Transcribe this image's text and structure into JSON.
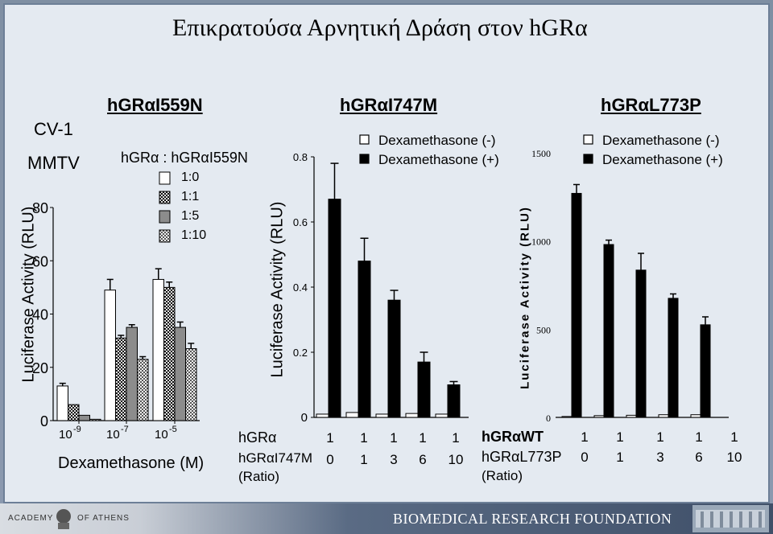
{
  "slide": {
    "title": "Επικρατούσα Αρνητική Δράση στον hGRα",
    "footer_left_1": "ACADEMY",
    "footer_left_2": "OF ATHENS",
    "footer_right": "BIOMEDICAL RESEARCH FOUNDATION",
    "colors": {
      "panel": "#e4eaf1",
      "frame": "#7f8fa3",
      "footer": "#3f4f68"
    }
  },
  "chart_data": [
    {
      "type": "bar",
      "title": "hGRαI559N",
      "cell_line": "CV-1",
      "reporter": "MMTV",
      "ylabel": "Luciferase Activity (RLU)",
      "xlabel": "Dexamethasone (M)",
      "ylim": [
        0,
        80
      ],
      "yticks": [
        0,
        20,
        40,
        60,
        80
      ],
      "categories": [
        "10-9",
        "10-7",
        "10-5"
      ],
      "legend_title": "hGRα : hGRαI559N",
      "series": [
        {
          "name": "1:0",
          "values": [
            13,
            49,
            53
          ],
          "errors": [
            1,
            4,
            4
          ]
        },
        {
          "name": "1:1",
          "values": [
            6,
            31,
            50
          ],
          "errors": [
            0,
            1,
            2
          ]
        },
        {
          "name": "1:5",
          "values": [
            2,
            35,
            35
          ],
          "errors": [
            0,
            1,
            2
          ]
        },
        {
          "name": "1:10",
          "values": [
            0.5,
            23,
            27
          ],
          "errors": [
            0,
            1,
            2
          ]
        }
      ]
    },
    {
      "type": "bar",
      "title": "hGRαI747M",
      "ylabel": "Luciferase Activity (RLU)",
      "ylim": [
        0,
        0.8
      ],
      "yticks": [
        0,
        0.2,
        0.4,
        0.6,
        0.8
      ],
      "ratio_label_1": "hGRα",
      "ratio_label_2": "hGRαI747M",
      "ratio_label_3": "(Ratio)",
      "ratio_row_1": [
        "1",
        "1",
        "1",
        "1",
        "1"
      ],
      "ratio_row_2": [
        "0",
        "1",
        "3",
        "6",
        "10"
      ],
      "series": [
        {
          "name": "Dexamethasone (-)",
          "values": [
            0.01,
            0.015,
            0.01,
            0.012,
            0.01
          ]
        },
        {
          "name": "Dexamethasone (+)",
          "values": [
            0.67,
            0.48,
            0.36,
            0.17,
            0.1
          ],
          "errors": [
            0.11,
            0.07,
            0.03,
            0.03,
            0.01
          ]
        }
      ]
    },
    {
      "type": "bar",
      "title": "hGRαL773P",
      "ylabel": "Luciferase Activity (RLU)",
      "ylim": [
        0,
        1500
      ],
      "yticks": [
        0,
        500,
        1000,
        1500
      ],
      "ratio_label_1": "hGRαWT",
      "ratio_label_2": "hGRαL773P",
      "ratio_label_3": "(Ratio)",
      "ratio_row_1": [
        "1",
        "1",
        "1",
        "1",
        "1"
      ],
      "ratio_row_2": [
        "0",
        "1",
        "3",
        "6",
        "10"
      ],
      "series": [
        {
          "name": "Dexamethasone (-)",
          "values": [
            5,
            10,
            12,
            15,
            15
          ]
        },
        {
          "name": "Dexamethasone (+)",
          "values": [
            1270,
            980,
            835,
            675,
            525
          ],
          "errors": [
            50,
            25,
            95,
            25,
            45
          ]
        }
      ]
    }
  ]
}
